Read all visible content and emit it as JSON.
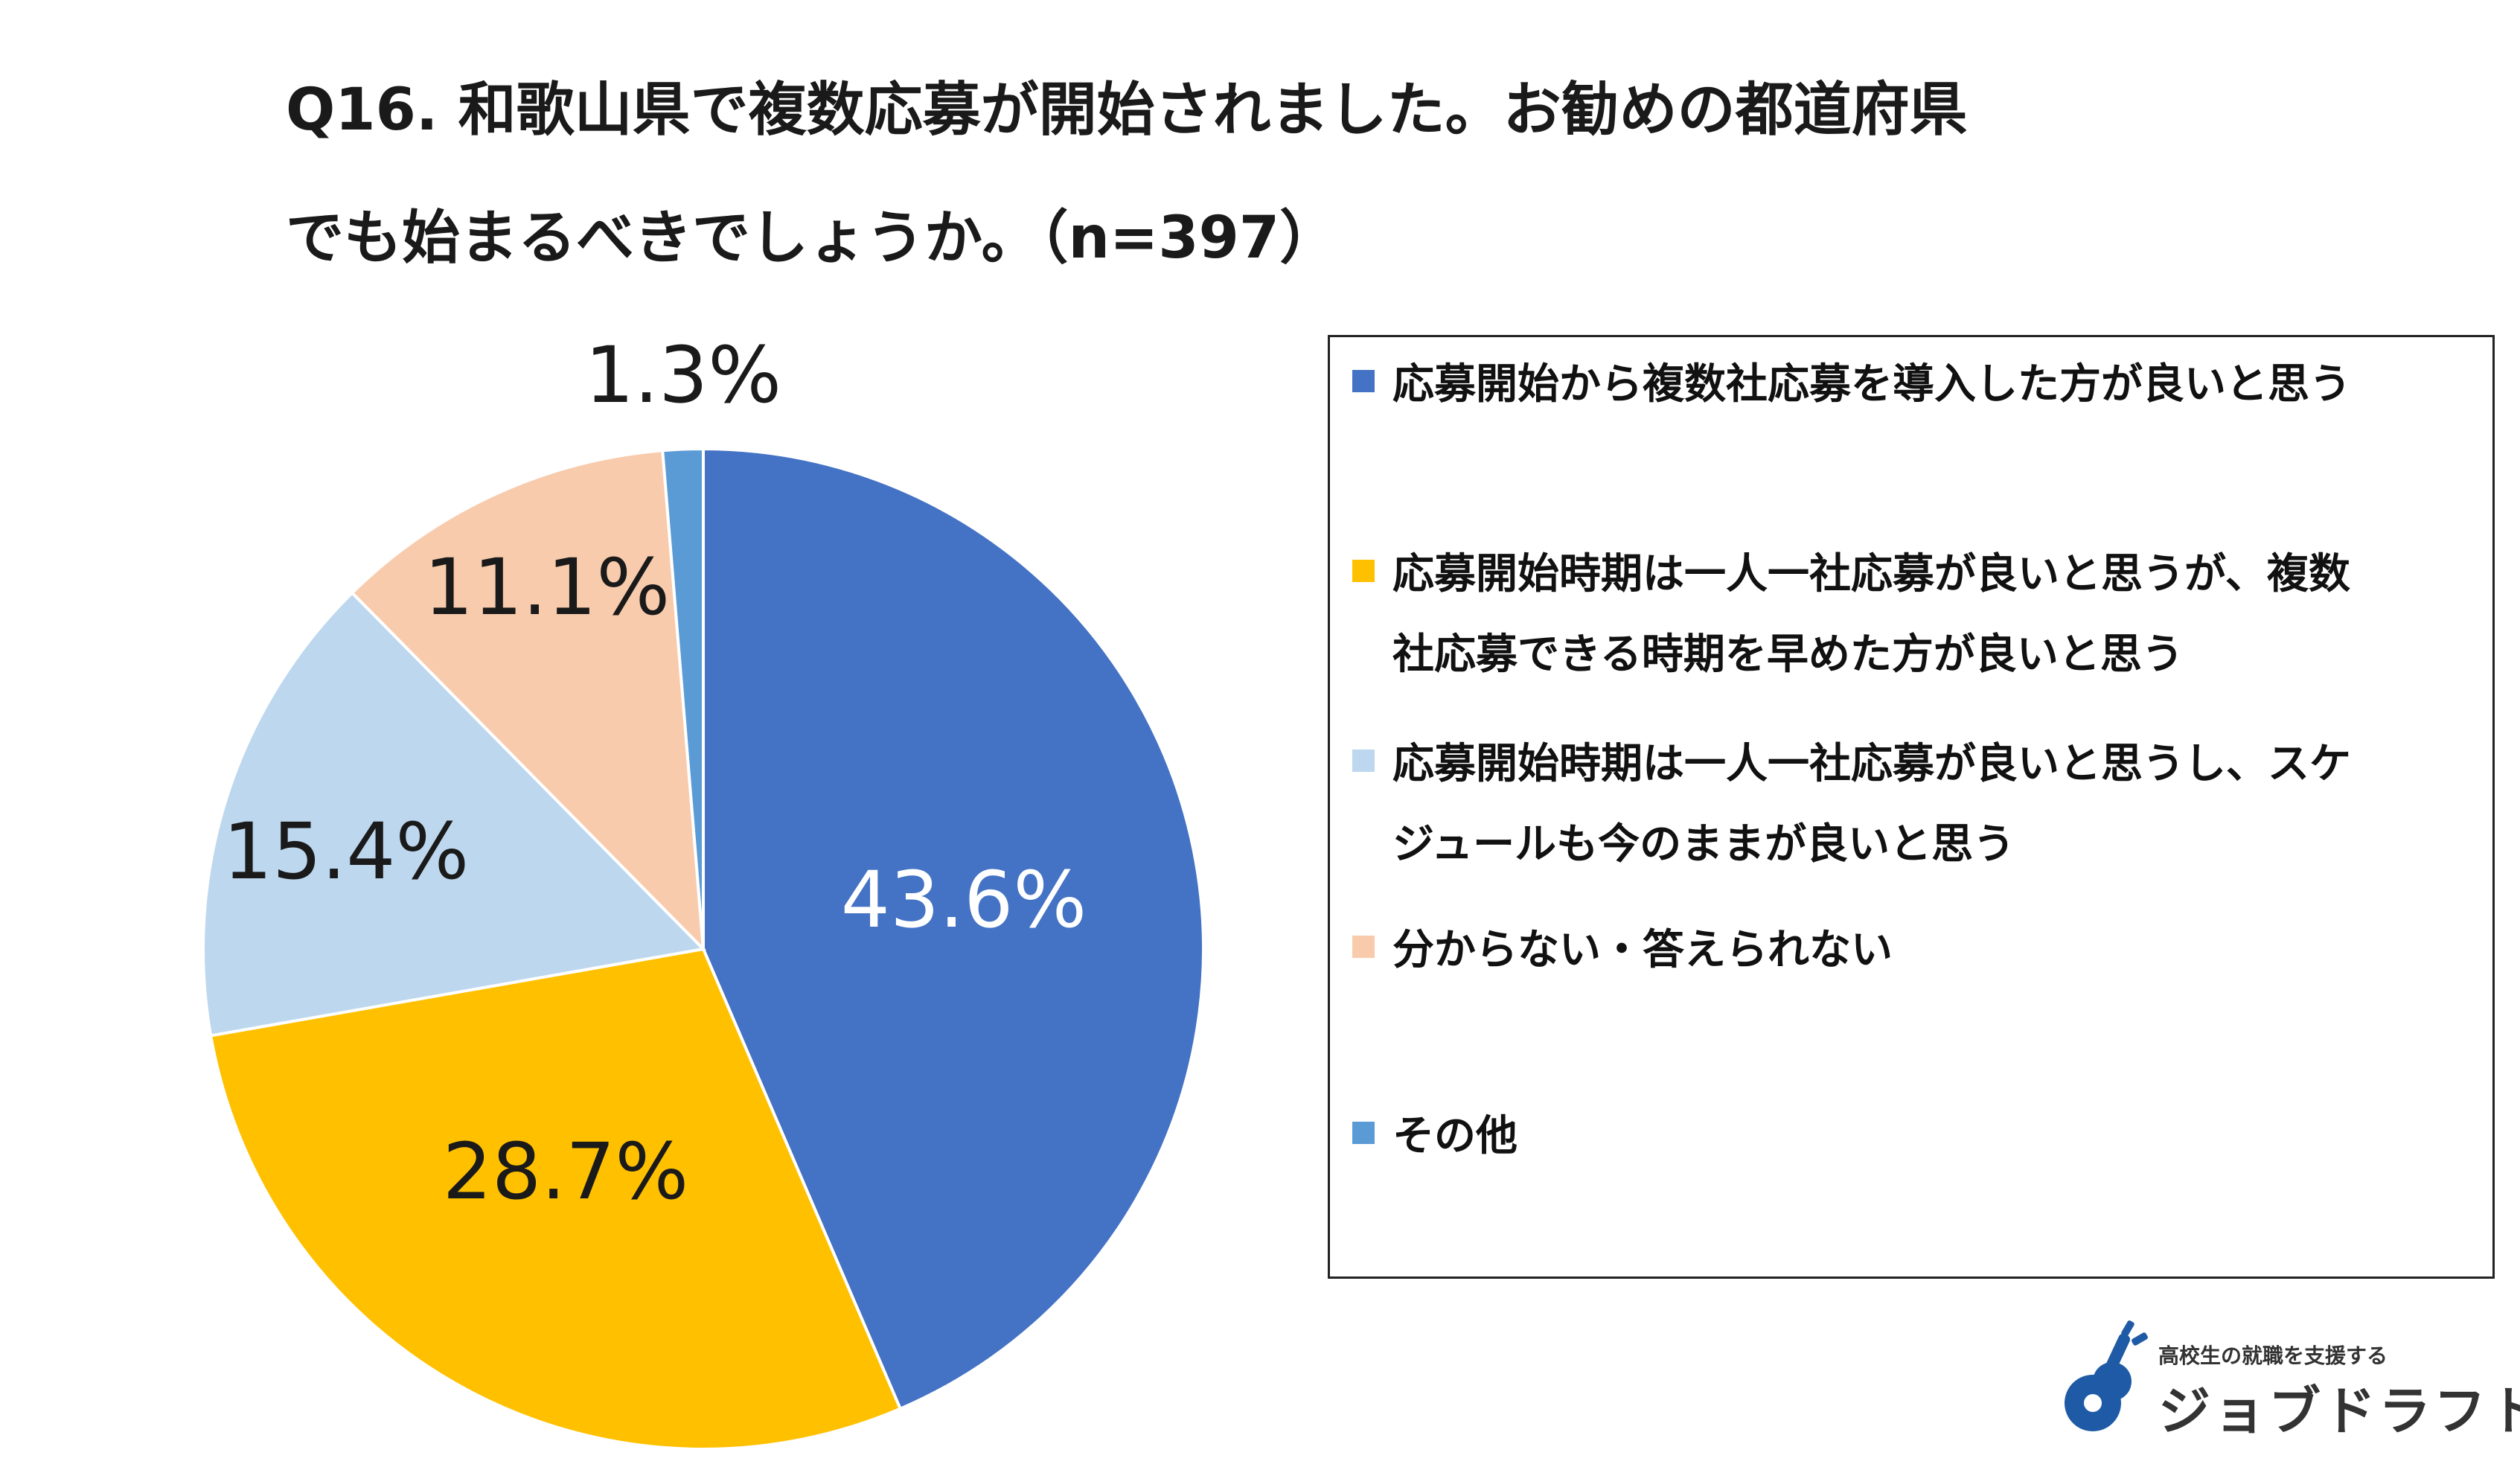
{
  "title_lines": [
    "Q16. 和歌山県で複数応募が開始されました。お勧めの都道府県",
    "でも始まるべきでしょうか。（n=397）"
  ],
  "chart_data": {
    "type": "pie",
    "title": "Q16. 和歌山県で複数応募が開始されました。お勧めの都道府県でも始まるべきでしょうか。（n=397）",
    "slices": [
      {
        "label": "応募開始から複数社応募を導入した方が良いと思う",
        "value": 43.6,
        "display": "43.6%",
        "color": "#4472C4",
        "text_color": "#ffffff"
      },
      {
        "label": "応募開始時期は一人一社応募が良いと思うが、複数社応募できる時期を早めた方が良いと思う",
        "value": 28.7,
        "display": "28.7%",
        "color": "#FFC000",
        "text_color": "#1a1a1a"
      },
      {
        "label": "応募開始時期は一人一社応募が良いと思うし、スケジュールも今のままが良いと思う",
        "value": 15.4,
        "display": "15.4%",
        "color": "#BDD7EE",
        "text_color": "#1a1a1a"
      },
      {
        "label": "分からない・答えられない",
        "value": 11.1,
        "display": "11.1%",
        "color": "#F8CBAD",
        "text_color": "#1a1a1a"
      },
      {
        "label": "その他",
        "value": 1.3,
        "display": "1.3%",
        "color": "#5B9BD5",
        "text_color": "#1a1a1a"
      }
    ],
    "legend_position": "right"
  },
  "legend": [
    {
      "lines": [
        "応募開始から複数社応募を導入した方が良いと思う"
      ],
      "color": "#4472C4"
    },
    {
      "lines": [
        "応募開始時期は一人一社応募が良いと思うが、複数",
        "社応募できる時期を早めた方が良いと思う"
      ],
      "color": "#FFC000"
    },
    {
      "lines": [
        "応募開始時期は一人一社応募が良いと思うし、スケ",
        "ジュールも今のままが良いと思う"
      ],
      "color": "#BDD7EE"
    },
    {
      "lines": [
        "分からない・答えられない"
      ],
      "color": "#F8CBAD"
    },
    {
      "lines": [
        "その他"
      ],
      "color": "#5B9BD5"
    }
  ],
  "brand": {
    "tagline": "高校生の就職を支援する",
    "name": "ジョブドラフト",
    "color": "#1F5AA6"
  }
}
